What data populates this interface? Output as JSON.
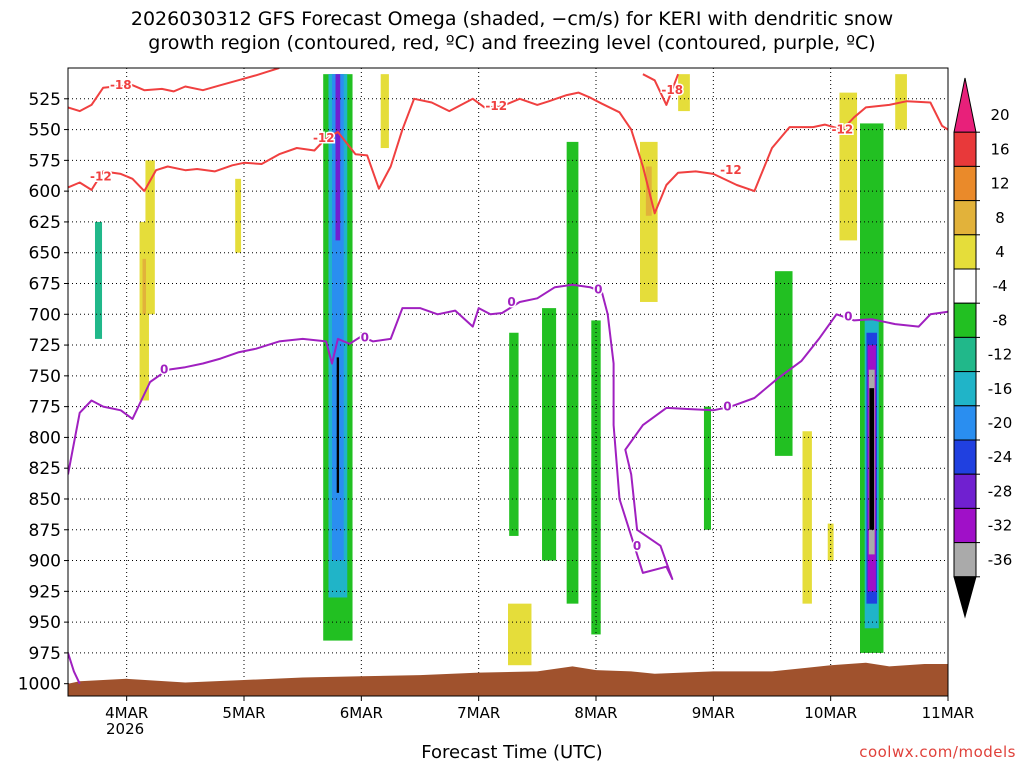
{
  "title_line1": "2026030312 GFS Forecast Omega (shaded, −cm/s) for KERI with dendritic snow",
  "title_line2": "growth region (contoured, red, ºC) and freezing level (contoured, purple, ºC)",
  "credit": "coolwx.com/models",
  "chart_data": {
    "type": "heatmap",
    "xlabel": "Forecast Time (UTC)",
    "ylabel": "",
    "x_ticks": [
      "4MAR",
      "5MAR",
      "6MAR",
      "7MAR",
      "8MAR",
      "9MAR",
      "10MAR",
      "11MAR"
    ],
    "x_year_label": "2026",
    "x_range_days": [
      3.5,
      11.0
    ],
    "y_ticks": [
      525,
      550,
      575,
      600,
      625,
      650,
      675,
      700,
      725,
      750,
      775,
      800,
      825,
      850,
      875,
      900,
      925,
      950,
      975,
      1000
    ],
    "y_range_hpa": [
      500,
      1010
    ],
    "grid": true,
    "colorbar": {
      "labels": [
        "20",
        "16",
        "12",
        "8",
        "4",
        "-4",
        "-8",
        "-12",
        "-16",
        "-20",
        "-24",
        "-28",
        "-32",
        "-36"
      ],
      "bins": [
        {
          "color": "#e8207a"
        },
        {
          "color": "#e8393a"
        },
        {
          "color": "#ea8a2a"
        },
        {
          "color": "#e2b23a"
        },
        {
          "color": "#e5dd3a"
        },
        {
          "color": "#ffffff"
        },
        {
          "color": "#22c022"
        },
        {
          "color": "#21b88a"
        },
        {
          "color": "#20b4c8"
        },
        {
          "color": "#2a8ef0"
        },
        {
          "color": "#2040e0"
        },
        {
          "color": "#7020d0"
        },
        {
          "color": "#a010c8"
        },
        {
          "color": "#aaaaaa"
        },
        {
          "color": "#000000"
        }
      ]
    },
    "shading_regions": [
      {
        "name": "ascent-band-5mar",
        "color": "#22c022",
        "day": 5.8,
        "width_days": 0.25,
        "p_top": 505,
        "p_bot": 965
      },
      {
        "name": "ascent-core-5mar-a",
        "color": "#20b4c8",
        "day": 5.8,
        "width_days": 0.16,
        "p_top": 505,
        "p_bot": 930
      },
      {
        "name": "ascent-core-5mar-b",
        "color": "#2a8ef0",
        "day": 5.8,
        "width_days": 0.1,
        "p_top": 505,
        "p_bot": 900
      },
      {
        "name": "ascent-core-5mar-c",
        "color": "#7020d0",
        "day": 5.8,
        "width_days": 0.04,
        "p_top": 505,
        "p_bot": 640
      },
      {
        "name": "ascent-core-5mar-d",
        "color": "#000000",
        "day": 5.8,
        "width_days": 0.02,
        "p_top": 735,
        "p_bot": 845
      },
      {
        "name": "ascent-band-7mar-a",
        "color": "#22c022",
        "day": 7.3,
        "width_days": 0.08,
        "p_top": 715,
        "p_bot": 880
      },
      {
        "name": "ascent-band-7mar-b",
        "color": "#22c022",
        "day": 7.6,
        "width_days": 0.12,
        "p_top": 695,
        "p_bot": 900
      },
      {
        "name": "ascent-band-7mar-c",
        "color": "#22c022",
        "day": 7.8,
        "width_days": 0.1,
        "p_top": 560,
        "p_bot": 935
      },
      {
        "name": "ascent-band-8mar",
        "color": "#22c022",
        "day": 8.0,
        "width_days": 0.08,
        "p_top": 705,
        "p_bot": 960
      },
      {
        "name": "ascent-band-9mar",
        "color": "#22c022",
        "day": 8.95,
        "width_days": 0.06,
        "p_top": 775,
        "p_bot": 875
      },
      {
        "name": "ascent-band-10mar-a",
        "color": "#22c022",
        "day": 9.6,
        "width_days": 0.15,
        "p_top": 665,
        "p_bot": 815
      },
      {
        "name": "ascent-band-10mar-b",
        "color": "#22c022",
        "day": 10.35,
        "width_days": 0.2,
        "p_top": 545,
        "p_bot": 975
      },
      {
        "name": "ascent-core-10mar-a",
        "color": "#20b4c8",
        "day": 10.35,
        "width_days": 0.12,
        "p_top": 705,
        "p_bot": 955
      },
      {
        "name": "ascent-core-10mar-b",
        "color": "#2040e0",
        "day": 10.35,
        "width_days": 0.09,
        "p_top": 715,
        "p_bot": 935
      },
      {
        "name": "ascent-core-10mar-c",
        "color": "#a010c8",
        "day": 10.35,
        "width_days": 0.07,
        "p_top": 725,
        "p_bot": 925
      },
      {
        "name": "ascent-core-10mar-d",
        "color": "#aaaaaa",
        "day": 10.35,
        "width_days": 0.05,
        "p_top": 745,
        "p_bot": 895
      },
      {
        "name": "ascent-core-10mar-e",
        "color": "#000000",
        "day": 10.35,
        "width_days": 0.04,
        "p_top": 760,
        "p_bot": 875
      },
      {
        "name": "descent-4mar-a",
        "color": "#e5dd3a",
        "day": 4.2,
        "width_days": 0.08,
        "p_top": 575,
        "p_bot": 700
      },
      {
        "name": "descent-4mar-b",
        "color": "#e5dd3a",
        "day": 4.15,
        "width_days": 0.08,
        "p_top": 625,
        "p_bot": 770
      },
      {
        "name": "descent-4mar-c",
        "color": "#e2b23a",
        "day": 4.15,
        "width_days": 0.03,
        "p_top": 655,
        "p_bot": 700
      },
      {
        "name": "descent-5mar-a",
        "color": "#e5dd3a",
        "day": 4.95,
        "width_days": 0.05,
        "p_top": 590,
        "p_bot": 650
      },
      {
        "name": "descent-6mar-a",
        "color": "#e5dd3a",
        "day": 6.2,
        "width_days": 0.07,
        "p_top": 505,
        "p_bot": 565
      },
      {
        "name": "descent-8mar-a",
        "color": "#e5dd3a",
        "day": 8.45,
        "width_days": 0.15,
        "p_top": 560,
        "p_bot": 690
      },
      {
        "name": "descent-8mar-b",
        "color": "#e2b23a",
        "day": 8.45,
        "width_days": 0.05,
        "p_top": 580,
        "p_bot": 620
      },
      {
        "name": "descent-9mar-a",
        "color": "#e5dd3a",
        "day": 8.75,
        "width_days": 0.1,
        "p_top": 505,
        "p_bot": 535
      },
      {
        "name": "descent-10mar-a",
        "color": "#e5dd3a",
        "day": 10.15,
        "width_days": 0.15,
        "p_top": 520,
        "p_bot": 640
      },
      {
        "name": "descent-10mar-b",
        "color": "#e5dd3a",
        "day": 10.6,
        "width_days": 0.1,
        "p_top": 505,
        "p_bot": 550
      },
      {
        "name": "descent-10mar-c",
        "color": "#e5dd3a",
        "day": 9.8,
        "width_days": 0.08,
        "p_top": 795,
        "p_bot": 935
      },
      {
        "name": "descent-10mar-d",
        "color": "#e5dd3a",
        "day": 10.0,
        "width_days": 0.05,
        "p_top": 870,
        "p_bot": 900
      },
      {
        "name": "descent-7mar-a",
        "color": "#e5dd3a",
        "day": 7.35,
        "width_days": 0.2,
        "p_top": 935,
        "p_bot": 985
      },
      {
        "name": "green-4mar-a",
        "color": "#21b88a",
        "day": 3.76,
        "width_days": 0.06,
        "p_top": 625,
        "p_bot": 720
      }
    ],
    "series": [
      {
        "contour": "-12",
        "color": "#f04040",
        "points": [
          [
            3.5,
            597
          ],
          [
            3.6,
            593
          ],
          [
            3.7,
            599
          ],
          [
            3.8,
            584
          ],
          [
            3.95,
            586
          ],
          [
            4.05,
            590
          ],
          [
            4.15,
            600
          ],
          [
            4.25,
            583
          ],
          [
            4.35,
            580
          ],
          [
            4.5,
            583
          ],
          [
            4.6,
            582
          ],
          [
            4.75,
            584
          ],
          [
            4.9,
            579
          ],
          [
            5.0,
            577
          ],
          [
            5.15,
            578
          ],
          [
            5.3,
            570
          ],
          [
            5.45,
            565
          ],
          [
            5.6,
            567
          ],
          [
            5.7,
            557
          ],
          [
            5.8,
            552
          ],
          [
            5.95,
            570
          ],
          [
            6.05,
            571
          ],
          [
            6.15,
            598
          ],
          [
            6.25,
            580
          ],
          [
            6.35,
            550
          ],
          [
            6.45,
            525
          ],
          [
            6.6,
            528
          ],
          [
            6.75,
            535
          ],
          [
            6.95,
            525
          ],
          [
            7.05,
            532
          ],
          [
            7.2,
            531
          ],
          [
            7.35,
            525
          ],
          [
            7.5,
            530
          ],
          [
            7.6,
            527
          ],
          [
            7.75,
            522
          ],
          [
            7.85,
            520
          ],
          [
            7.95,
            524
          ],
          [
            8.05,
            529
          ],
          [
            8.2,
            536
          ],
          [
            8.3,
            550
          ],
          [
            8.4,
            580
          ],
          [
            8.5,
            618
          ],
          [
            8.6,
            595
          ],
          [
            8.7,
            585
          ],
          [
            8.85,
            584
          ],
          [
            9.0,
            586
          ],
          [
            9.2,
            595
          ],
          [
            9.35,
            600
          ],
          [
            9.5,
            565
          ],
          [
            9.65,
            548
          ],
          [
            9.85,
            548
          ],
          [
            9.95,
            546
          ],
          [
            10.1,
            550
          ],
          [
            10.2,
            540
          ],
          [
            10.3,
            532
          ],
          [
            10.5,
            530
          ],
          [
            10.65,
            527
          ],
          [
            10.85,
            528
          ],
          [
            10.95,
            547
          ],
          [
            11.0,
            550
          ]
        ]
      },
      {
        "contour": "-18",
        "color": "#f04040",
        "points": [
          [
            3.5,
            532
          ],
          [
            3.6,
            535
          ],
          [
            3.7,
            530
          ],
          [
            3.8,
            516
          ],
          [
            3.9,
            515
          ],
          [
            4.05,
            514
          ],
          [
            4.15,
            518
          ],
          [
            4.3,
            517
          ],
          [
            4.4,
            519
          ],
          [
            4.5,
            515
          ],
          [
            4.65,
            518
          ],
          [
            4.8,
            514
          ],
          [
            4.95,
            510
          ],
          [
            5.1,
            506
          ],
          [
            5.2,
            503
          ],
          [
            5.3,
            500
          ]
        ]
      },
      {
        "contour": "-18",
        "color": "#f04040",
        "points": [
          [
            8.4,
            505
          ],
          [
            8.5,
            510
          ],
          [
            8.6,
            530
          ],
          [
            8.7,
            505
          ]
        ]
      },
      {
        "contour": "0",
        "color": "#a020c0",
        "points": [
          [
            3.5,
            830
          ],
          [
            3.6,
            780
          ],
          [
            3.7,
            770
          ],
          [
            3.8,
            775
          ],
          [
            3.95,
            778
          ],
          [
            4.05,
            785
          ],
          [
            4.2,
            755
          ],
          [
            4.35,
            745
          ],
          [
            4.5,
            743
          ],
          [
            4.65,
            740
          ],
          [
            4.8,
            736
          ],
          [
            4.95,
            731
          ],
          [
            5.1,
            728
          ],
          [
            5.3,
            722
          ],
          [
            5.5,
            720
          ],
          [
            5.7,
            722
          ],
          [
            5.75,
            740
          ],
          [
            5.8,
            720
          ],
          [
            5.9,
            724
          ],
          [
            6.0,
            718
          ],
          [
            6.1,
            722
          ],
          [
            6.25,
            720
          ],
          [
            6.35,
            695
          ],
          [
            6.5,
            695
          ],
          [
            6.65,
            700
          ],
          [
            6.8,
            697
          ],
          [
            6.95,
            710
          ],
          [
            7.0,
            695
          ],
          [
            7.1,
            700
          ],
          [
            7.2,
            699
          ],
          [
            7.35,
            690
          ],
          [
            7.5,
            687
          ],
          [
            7.65,
            678
          ],
          [
            7.8,
            676
          ],
          [
            7.95,
            678
          ],
          [
            8.05,
            682
          ],
          [
            8.1,
            700
          ],
          [
            8.15,
            740
          ],
          [
            8.15,
            790
          ],
          [
            8.2,
            850
          ],
          [
            8.4,
            910
          ],
          [
            8.6,
            905
          ],
          [
            8.65,
            915
          ],
          [
            8.55,
            888
          ],
          [
            8.35,
            875
          ],
          [
            8.3,
            830
          ],
          [
            8.25,
            810
          ],
          [
            8.4,
            790
          ],
          [
            8.6,
            776
          ],
          [
            8.8,
            777
          ],
          [
            9.0,
            778
          ],
          [
            9.15,
            775
          ],
          [
            9.35,
            768
          ],
          [
            9.55,
            752
          ],
          [
            9.75,
            738
          ],
          [
            9.9,
            720
          ],
          [
            10.05,
            700
          ],
          [
            10.2,
            705
          ],
          [
            10.35,
            704
          ],
          [
            10.55,
            708
          ],
          [
            10.75,
            710
          ],
          [
            10.85,
            700
          ],
          [
            11.0,
            698
          ]
        ]
      },
      {
        "contour": "0",
        "color": "#a020c0",
        "points": [
          [
            3.5,
            975
          ],
          [
            3.55,
            990
          ],
          [
            3.6,
            1000
          ]
        ]
      }
    ],
    "contour_labels": [
      {
        "text": "-18",
        "color": "#f04040",
        "day": 3.95,
        "p": 514
      },
      {
        "text": "-12",
        "color": "#f04040",
        "day": 3.78,
        "p": 588
      },
      {
        "text": "-12",
        "color": "#f04040",
        "day": 5.68,
        "p": 557
      },
      {
        "text": "-12",
        "color": "#f04040",
        "day": 7.15,
        "p": 531
      },
      {
        "text": "-18",
        "color": "#f04040",
        "day": 8.65,
        "p": 518
      },
      {
        "text": "-12",
        "color": "#f04040",
        "day": 9.15,
        "p": 583
      },
      {
        "text": "-12",
        "color": "#f04040",
        "day": 10.1,
        "p": 550
      },
      {
        "text": "0",
        "color": "#a020c0",
        "day": 4.32,
        "p": 745
      },
      {
        "text": "0",
        "color": "#a020c0",
        "day": 6.03,
        "p": 719
      },
      {
        "text": "0",
        "color": "#a020c0",
        "day": 7.28,
        "p": 690
      },
      {
        "text": "0",
        "color": "#a020c0",
        "day": 8.02,
        "p": 680
      },
      {
        "text": "0",
        "color": "#a020c0",
        "day": 8.35,
        "p": 888
      },
      {
        "text": "0",
        "color": "#a020c0",
        "day": 9.12,
        "p": 775
      },
      {
        "text": "0",
        "color": "#a020c0",
        "day": 10.15,
        "p": 702
      }
    ],
    "surface": {
      "color": "#a0522d",
      "points": [
        [
          3.5,
          1000
        ],
        [
          3.6,
          998
        ],
        [
          4.0,
          996
        ],
        [
          4.5,
          999
        ],
        [
          5.0,
          997
        ],
        [
          5.5,
          995
        ],
        [
          6.0,
          994
        ],
        [
          6.5,
          993
        ],
        [
          7.0,
          991
        ],
        [
          7.5,
          990
        ],
        [
          7.8,
          986
        ],
        [
          8.0,
          989
        ],
        [
          8.3,
          990
        ],
        [
          8.5,
          992
        ],
        [
          9.0,
          990
        ],
        [
          9.5,
          990
        ],
        [
          9.8,
          987
        ],
        [
          10.0,
          985
        ],
        [
          10.3,
          983
        ],
        [
          10.5,
          986
        ],
        [
          10.8,
          984
        ],
        [
          11.0,
          984
        ]
      ]
    }
  }
}
